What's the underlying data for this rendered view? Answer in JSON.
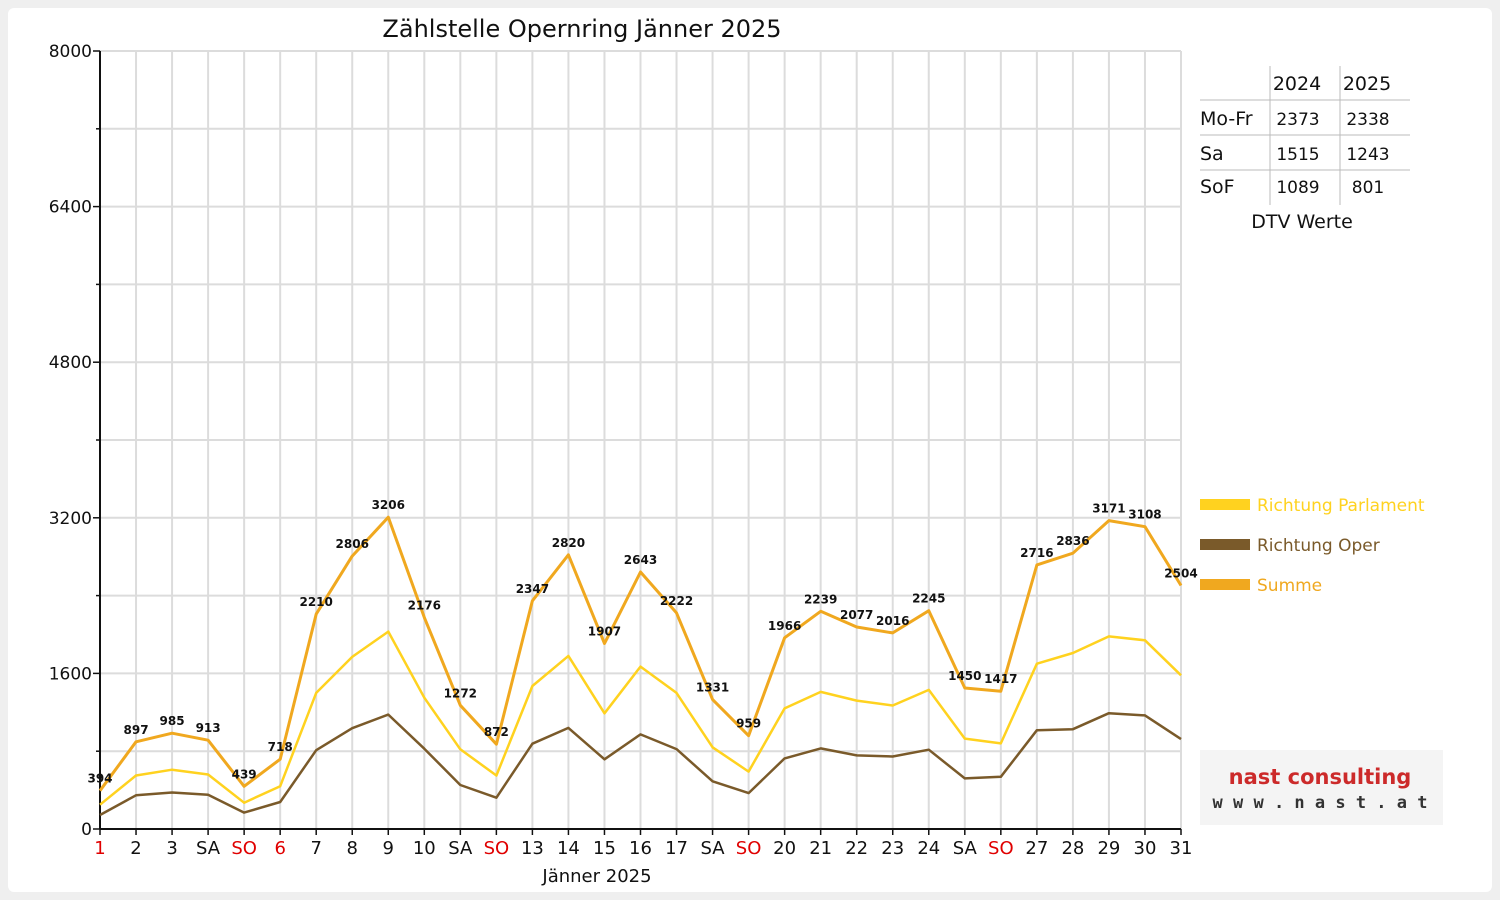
{
  "chart_data": {
    "type": "line",
    "title": "Zählstelle Opernring Jänner 2025",
    "xlabel": "Jänner 2025",
    "ylabel": "",
    "ylim": [
      0,
      8000
    ],
    "yticks": [
      "0",
      "1600",
      "3200",
      "4800",
      "6400",
      "8000"
    ],
    "grid": true,
    "categories": [
      "1",
      "2",
      "3",
      "SA",
      "SO",
      "6",
      "7",
      "8",
      "9",
      "10",
      "SA",
      "SO",
      "13",
      "14",
      "15",
      "16",
      "17",
      "SA",
      "SO",
      "20",
      "21",
      "22",
      "23",
      "24",
      "SA",
      "SO",
      "27",
      "28",
      "29",
      "30",
      "31"
    ],
    "red_categories": [
      0,
      4,
      5,
      11,
      18,
      25
    ],
    "series": [
      {
        "name": "Richtung Parlament",
        "color": "#ffd21f",
        "values": [
          250,
          550,
          610,
          560,
          270,
          440,
          1400,
          1770,
          2030,
          1350,
          820,
          550,
          1470,
          1780,
          1190,
          1670,
          1400,
          840,
          590,
          1240,
          1410,
          1320,
          1270,
          1430,
          930,
          880,
          1700,
          1810,
          1980,
          1940,
          1580
        ]
      },
      {
        "name": "Richtung Oper",
        "color": "#7a5a2a",
        "values": [
          144,
          347,
          375,
          353,
          169,
          278,
          810,
          1036,
          1176,
          826,
          452,
          322,
          877,
          1040,
          717,
          973,
          822,
          491,
          369,
          726,
          829,
          757,
          746,
          815,
          520,
          537,
          1016,
          1026,
          1191,
          1168,
          924
        ]
      },
      {
        "name": "Summe",
        "color": "#f0a81f",
        "values": [
          394,
          897,
          985,
          913,
          439,
          718,
          2210,
          2806,
          3206,
          2176,
          1272,
          872,
          2347,
          2820,
          1907,
          2643,
          2222,
          1331,
          959,
          1966,
          2239,
          2077,
          2016,
          2245,
          1450,
          1417,
          2716,
          2836,
          3171,
          3108,
          2504
        ]
      }
    ],
    "data_labels": [
      "394",
      "897",
      "985",
      "913",
      "439",
      "718",
      "2210",
      "2806",
      "3206",
      "2176",
      "1272",
      "872",
      "2347",
      "2820",
      "1907",
      "2643",
      "2222",
      "1331",
      "959",
      "1966",
      "2239",
      "2077",
      "2016",
      "2245",
      "1450",
      "1417",
      "2716",
      "2836",
      "3171",
      "3108",
      "2504"
    ],
    "legend_position": "right"
  },
  "dtv_table": {
    "headers": [
      "",
      "2024",
      "2025"
    ],
    "rows": [
      {
        "label": "Mo-Fr",
        "v2024": "2373",
        "v2025": "2338"
      },
      {
        "label": "Sa",
        "v2024": "1515",
        "v2025": "1243"
      },
      {
        "label": "SoF",
        "v2024": "1089",
        "v2025": "801"
      }
    ],
    "caption": "DTV Werte"
  },
  "logo": {
    "line1": "nast consulting",
    "line2": "w w w . n a s t . a t"
  }
}
